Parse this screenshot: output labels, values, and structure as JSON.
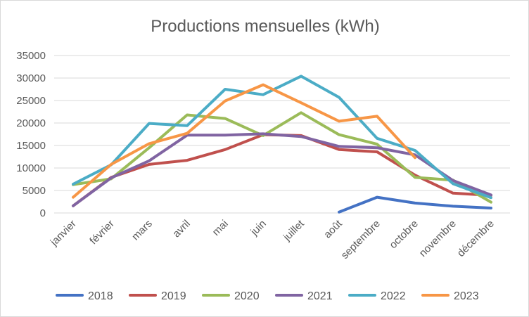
{
  "chart_data": {
    "type": "line",
    "title": "Productions mensuelles (kWh)",
    "categories": [
      "janvier",
      "février",
      "mars",
      "avril",
      "mai",
      "juin",
      "juillet",
      "août",
      "septembre",
      "octobre",
      "novembre",
      "décembre"
    ],
    "ylim": [
      0,
      35000
    ],
    "yticks": [
      0,
      5000,
      10000,
      15000,
      20000,
      25000,
      30000,
      35000
    ],
    "grid": true,
    "legend_position": "bottom",
    "series": [
      {
        "name": "2018",
        "color": "#4472C4",
        "values": [
          null,
          null,
          null,
          null,
          null,
          null,
          null,
          200,
          3500,
          2200,
          1500,
          1100
        ]
      },
      {
        "name": "2019",
        "color": "#C0504D",
        "values": [
          1600,
          7900,
          10800,
          11700,
          14100,
          17400,
          17200,
          14100,
          13600,
          8400,
          4400,
          3900
        ]
      },
      {
        "name": "2020",
        "color": "#9BBB59",
        "values": [
          6300,
          7600,
          14500,
          21800,
          21000,
          17200,
          22300,
          17400,
          15300,
          7900,
          7300,
          2400
        ]
      },
      {
        "name": "2021",
        "color": "#8064A2",
        "values": [
          1600,
          7800,
          11600,
          17300,
          17300,
          17600,
          17000,
          14800,
          14500,
          12900,
          7200,
          4000
        ]
      },
      {
        "name": "2022",
        "color": "#4BACC6",
        "values": [
          6400,
          10700,
          19900,
          19400,
          27500,
          26300,
          30400,
          25700,
          16600,
          13900,
          6500,
          3400
        ]
      },
      {
        "name": "2023",
        "color": "#F79646",
        "values": [
          3500,
          10800,
          15400,
          17700,
          24900,
          28500,
          24500,
          20400,
          21500,
          12300,
          null,
          null
        ]
      }
    ]
  }
}
